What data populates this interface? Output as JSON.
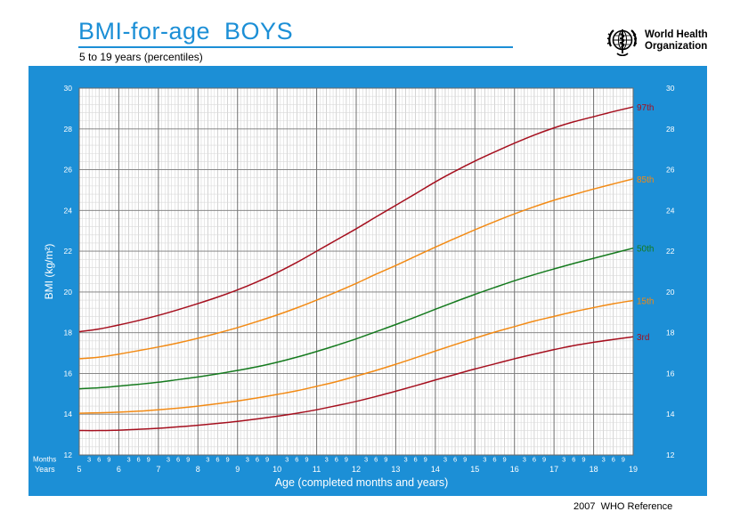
{
  "header": {
    "title": "BMI-for-age  BOYS",
    "subtitle": "5 to 19 years (percentiles)",
    "organization_line1": "World Health",
    "organization_line2": "Organization"
  },
  "footer": {
    "reference": "2007  WHO Reference"
  },
  "colors": {
    "panel": "#1c8fd6",
    "title": "#1c8fd6",
    "p97": "#a50f1e",
    "p85": "#f28a14",
    "p50": "#157a1e",
    "p15": "#f28a14",
    "p3": "#a50f1e"
  },
  "chart_data": {
    "type": "line",
    "title": "",
    "xlabel": "Age (completed months and years)",
    "ylabel": "BMI (kg/m²)",
    "xlim": [
      5,
      19
    ],
    "ylim": [
      12,
      30
    ],
    "x_ticks": [
      5,
      6,
      7,
      8,
      9,
      10,
      11,
      12,
      13,
      14,
      15,
      16,
      17,
      18,
      19
    ],
    "y_ticks": [
      12,
      14,
      16,
      18,
      20,
      22,
      24,
      26,
      28,
      30
    ],
    "month_ticks": [
      3,
      6,
      9
    ],
    "row_label_months": "Months",
    "row_label_years": "Years",
    "grid": true,
    "legend": "line-end labels (right)",
    "x": [
      5,
      5.5,
      6,
      6.5,
      7,
      7.5,
      8,
      8.5,
      9,
      9.5,
      10,
      10.5,
      11,
      11.5,
      12,
      12.5,
      13,
      13.5,
      14,
      14.5,
      15,
      15.5,
      16,
      16.5,
      17,
      17.5,
      18,
      18.5,
      19
    ],
    "series": [
      {
        "name": "97th",
        "color": "#a50f1e",
        "values": [
          18.05,
          18.18,
          18.38,
          18.6,
          18.85,
          19.13,
          19.43,
          19.75,
          20.1,
          20.5,
          20.95,
          21.45,
          22.0,
          22.55,
          23.1,
          23.68,
          24.25,
          24.82,
          25.4,
          25.93,
          26.42,
          26.87,
          27.3,
          27.7,
          28.05,
          28.35,
          28.6,
          28.85,
          29.08
        ]
      },
      {
        "name": "85th",
        "color": "#f28a14",
        "values": [
          16.72,
          16.8,
          16.95,
          17.12,
          17.3,
          17.5,
          17.73,
          17.98,
          18.25,
          18.55,
          18.87,
          19.22,
          19.6,
          20.0,
          20.42,
          20.87,
          21.3,
          21.75,
          22.2,
          22.63,
          23.05,
          23.45,
          23.83,
          24.18,
          24.5,
          24.78,
          25.05,
          25.3,
          25.55
        ]
      },
      {
        "name": "50th",
        "color": "#157a1e",
        "values": [
          15.25,
          15.3,
          15.38,
          15.47,
          15.57,
          15.7,
          15.83,
          15.98,
          16.15,
          16.33,
          16.55,
          16.8,
          17.08,
          17.38,
          17.7,
          18.05,
          18.4,
          18.77,
          19.15,
          19.52,
          19.88,
          20.22,
          20.55,
          20.85,
          21.13,
          21.4,
          21.65,
          21.9,
          22.15
        ]
      },
      {
        "name": "15th",
        "color": "#f28a14",
        "values": [
          14.05,
          14.07,
          14.1,
          14.15,
          14.22,
          14.3,
          14.4,
          14.52,
          14.65,
          14.8,
          14.97,
          15.15,
          15.37,
          15.6,
          15.87,
          16.15,
          16.45,
          16.77,
          17.1,
          17.42,
          17.73,
          18.03,
          18.3,
          18.57,
          18.8,
          19.03,
          19.23,
          19.42,
          19.58
        ]
      },
      {
        "name": "3rd",
        "color": "#a50f1e",
        "values": [
          13.2,
          13.2,
          13.22,
          13.26,
          13.31,
          13.38,
          13.46,
          13.55,
          13.65,
          13.77,
          13.9,
          14.05,
          14.22,
          14.42,
          14.63,
          14.87,
          15.13,
          15.4,
          15.68,
          15.95,
          16.22,
          16.47,
          16.72,
          16.95,
          17.17,
          17.37,
          17.53,
          17.67,
          17.8
        ]
      }
    ]
  }
}
